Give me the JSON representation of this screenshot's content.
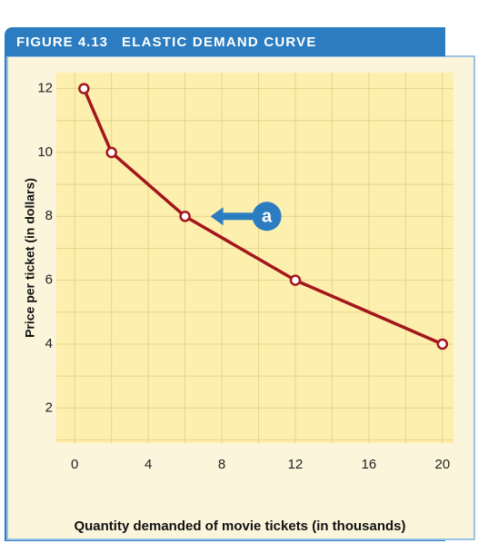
{
  "chart_data": {
    "type": "line",
    "figure_label": "FIGURE 4.13",
    "title": "ELASTIC DEMAND CURVE",
    "xlabel": "Quantity demanded of movie tickets (in thousands)",
    "ylabel": "Price per ticket (in dollars)",
    "x": [
      0.5,
      2,
      6,
      12,
      20
    ],
    "series": [
      {
        "color": "#a3161c",
        "values": [
          12,
          10,
          8,
          6,
          4
        ]
      }
    ],
    "xlim": [
      -1,
      20.6
    ],
    "ylim": [
      0.9,
      12.5
    ],
    "xticks": [
      0,
      4,
      8,
      12,
      16,
      20
    ],
    "yticks": [
      2,
      4,
      6,
      8,
      10,
      12
    ],
    "minor_xticks": [
      0,
      2,
      4,
      6,
      8,
      10,
      12,
      14,
      16,
      18,
      20
    ],
    "minor_yticks": [
      1,
      2,
      3,
      4,
      5,
      6,
      7,
      8,
      9,
      10,
      11,
      12
    ],
    "grid": true,
    "annotations": [
      {
        "text": "a",
        "x": 6,
        "y": 8
      }
    ]
  }
}
